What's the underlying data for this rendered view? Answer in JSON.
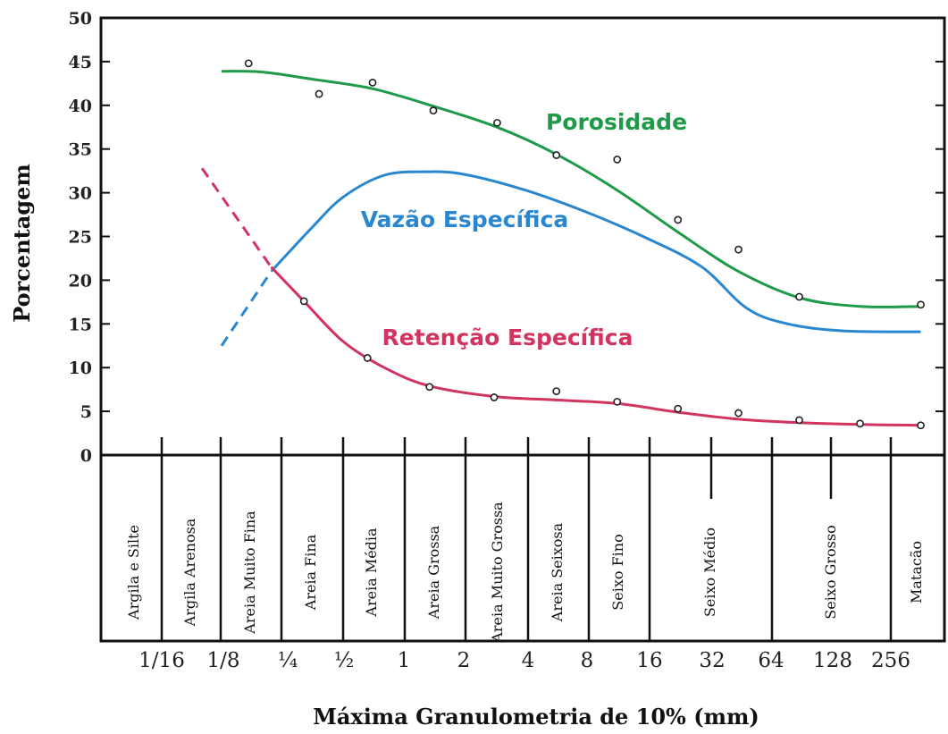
{
  "colors": {
    "porosidade": "#1f9a48",
    "vazao": "#2a87cf",
    "retencao": "#d0345f",
    "axis": "#111111"
  },
  "chart_data": {
    "type": "line",
    "ylabel": "Porcentagem",
    "xlabel": "Máxima Granulometria de 10% (mm)",
    "ylim": [
      0,
      50
    ],
    "yticks": [
      "0",
      "5",
      "10",
      "15",
      "20",
      "25",
      "30",
      "35",
      "40",
      "45",
      "50"
    ],
    "xticks": [
      "1/16",
      "1/8",
      "¼",
      "½",
      "1",
      "2",
      "4",
      "8",
      "16",
      "32",
      "64",
      "128",
      "256"
    ],
    "categories": [
      "Argila e Silte",
      "Argila Arenosa",
      "Areia Muito Fina",
      "Areia Fina",
      "Areia Média",
      "Areia Grossa",
      "Areia Muito Grossa",
      "Areia Seixosa",
      "Seixo Fino",
      "Seixo Médio",
      "Seixo Grosso",
      "Matacão"
    ],
    "series": [
      {
        "name": "Porosidade",
        "points": [
          [
            0.17,
            44.8
          ],
          [
            0.38,
            41.3
          ],
          [
            0.7,
            42.6
          ],
          [
            1.4,
            39.4
          ],
          [
            2.9,
            38.0
          ],
          [
            5.7,
            34.3
          ],
          [
            11.4,
            33.8
          ],
          [
            22.8,
            26.9
          ],
          [
            45.5,
            23.5
          ],
          [
            91,
            18.1
          ],
          [
            182,
            null
          ],
          [
            364,
            17.2
          ]
        ],
        "curve": [
          [
            0.125,
            43.9
          ],
          [
            0.2,
            43.8
          ],
          [
            0.35,
            43.0
          ],
          [
            0.7,
            41.9
          ],
          [
            1.4,
            39.9
          ],
          [
            2.9,
            37.5
          ],
          [
            5.7,
            34.4
          ],
          [
            11.4,
            30.3
          ],
          [
            22.8,
            25.5
          ],
          [
            45.5,
            21.0
          ],
          [
            91,
            18.0
          ],
          [
            182,
            17.0
          ],
          [
            364,
            17.0
          ]
        ]
      },
      {
        "name": "Vazão Específica",
        "dashed": [
          [
            0.125,
            12.5
          ],
          [
            0.22,
            21.0
          ]
        ],
        "curve": [
          [
            0.22,
            21.0
          ],
          [
            0.35,
            26.0
          ],
          [
            0.5,
            29.5
          ],
          [
            0.8,
            32.0
          ],
          [
            1.3,
            32.4
          ],
          [
            2.0,
            32.1
          ],
          [
            4.0,
            30.3
          ],
          [
            8.0,
            27.8
          ],
          [
            16.0,
            24.8
          ],
          [
            30.0,
            21.5
          ],
          [
            50.0,
            16.8
          ],
          [
            80.0,
            15.0
          ],
          [
            150,
            14.2
          ],
          [
            364,
            14.1
          ]
        ]
      },
      {
        "name": "Retenção Específica",
        "dashed": [
          [
            0.1,
            32.8
          ],
          [
            0.22,
            21.5
          ]
        ],
        "points": [
          [
            0.32,
            17.6
          ],
          [
            0.66,
            11.1
          ],
          [
            1.34,
            7.8
          ],
          [
            2.8,
            6.6
          ],
          [
            5.7,
            7.3
          ],
          [
            11.4,
            6.1
          ],
          [
            22.8,
            5.3
          ],
          [
            45.5,
            4.8
          ],
          [
            91,
            4.0
          ],
          [
            182,
            3.6
          ],
          [
            364,
            3.4
          ]
        ],
        "curve": [
          [
            0.22,
            21.5
          ],
          [
            0.32,
            17.6
          ],
          [
            0.5,
            13.0
          ],
          [
            0.8,
            10.0
          ],
          [
            1.34,
            7.9
          ],
          [
            2.8,
            6.7
          ],
          [
            5.7,
            6.3
          ],
          [
            11.4,
            5.9
          ],
          [
            22.8,
            4.9
          ],
          [
            45.5,
            4.1
          ],
          [
            91,
            3.7
          ],
          [
            182,
            3.5
          ],
          [
            364,
            3.4
          ]
        ]
      }
    ]
  }
}
